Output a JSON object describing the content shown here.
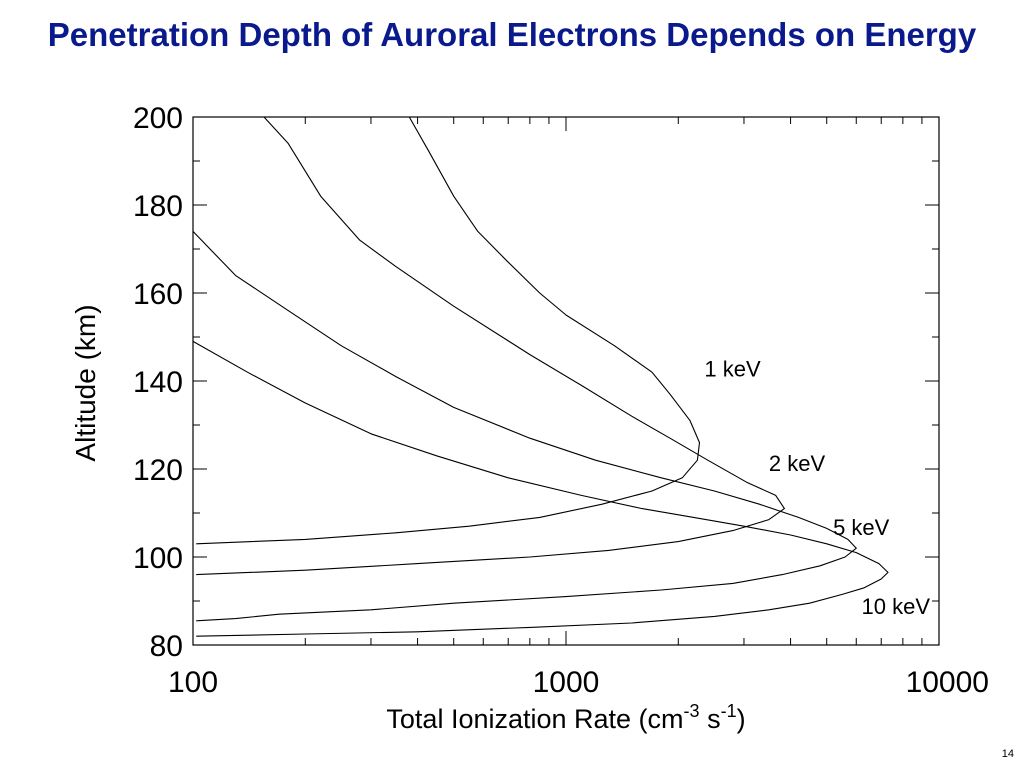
{
  "slide": {
    "title": "Penetration Depth of Auroral Electrons Depends on Energy",
    "title_color": "#0a1a8c",
    "page_number": "14"
  },
  "chart_data": {
    "type": "line",
    "title": "",
    "xlabel": "Total Ionization Rate (cm",
    "xlabel_sup1": "-3",
    "xlabel_mid": " s",
    "xlabel_sup2": "-1",
    "xlabel_end": ")",
    "ylabel": "Altitude (km)",
    "xscale": "log",
    "xlim": [
      100,
      10000
    ],
    "ylim": [
      80,
      200
    ],
    "xticks": [
      {
        "value": 100,
        "label": "100"
      },
      {
        "value": 1000,
        "label": "1000"
      },
      {
        "value": 10000,
        "label": "10000"
      }
    ],
    "yticks": [
      {
        "value": 80,
        "label": "80"
      },
      {
        "value": 100,
        "label": "100"
      },
      {
        "value": 120,
        "label": "120"
      },
      {
        "value": 140,
        "label": "140"
      },
      {
        "value": 160,
        "label": "160"
      },
      {
        "value": 180,
        "label": "180"
      },
      {
        "value": 200,
        "label": "200"
      }
    ],
    "grid": false,
    "legend": "none",
    "series": [
      {
        "name": "1 keV",
        "label_at": {
          "x": 2350,
          "y": 141
        },
        "points": [
          [
            102,
            103
          ],
          [
            200,
            104
          ],
          [
            350,
            105.5
          ],
          [
            550,
            107
          ],
          [
            850,
            109
          ],
          [
            1250,
            112
          ],
          [
            1700,
            115
          ],
          [
            2050,
            118
          ],
          [
            2250,
            122
          ],
          [
            2280,
            126
          ],
          [
            2150,
            131
          ],
          [
            1900,
            137
          ],
          [
            1700,
            142
          ],
          [
            1350,
            148
          ],
          [
            1000,
            155
          ],
          [
            850,
            160
          ],
          [
            700,
            167
          ],
          [
            580,
            174
          ],
          [
            500,
            182
          ],
          [
            430,
            192
          ],
          [
            380,
            200
          ]
        ]
      },
      {
        "name": "2 keV",
        "label_at": {
          "x": 3500,
          "y": 119.5
        },
        "points": [
          [
            102,
            96
          ],
          [
            200,
            97
          ],
          [
            400,
            98.5
          ],
          [
            800,
            100
          ],
          [
            1300,
            101.5
          ],
          [
            2000,
            103.5
          ],
          [
            2800,
            106
          ],
          [
            3500,
            108.5
          ],
          [
            3850,
            111
          ],
          [
            3650,
            114
          ],
          [
            3050,
            117
          ],
          [
            2400,
            122
          ],
          [
            1900,
            127
          ],
          [
            1500,
            132
          ],
          [
            1100,
            139
          ],
          [
            800,
            146
          ],
          [
            500,
            157
          ],
          [
            350,
            166
          ],
          [
            280,
            172
          ],
          [
            220,
            182
          ],
          [
            180,
            194
          ],
          [
            155,
            200
          ]
        ]
      },
      {
        "name": "5 keV",
        "label_at": {
          "x": 5200,
          "y": 105
        },
        "points": [
          [
            102,
            85.5
          ],
          [
            130,
            86
          ],
          [
            170,
            87
          ],
          [
            300,
            88
          ],
          [
            500,
            89.5
          ],
          [
            1000,
            91
          ],
          [
            1800,
            92.5
          ],
          [
            2800,
            94
          ],
          [
            3800,
            96
          ],
          [
            4800,
            98
          ],
          [
            5600,
            100
          ],
          [
            6000,
            102
          ],
          [
            5700,
            104
          ],
          [
            5000,
            106.5
          ],
          [
            4200,
            109
          ],
          [
            3300,
            112
          ],
          [
            2500,
            115
          ],
          [
            1800,
            118
          ],
          [
            1200,
            122
          ],
          [
            800,
            127
          ],
          [
            500,
            134
          ],
          [
            350,
            141
          ],
          [
            250,
            148
          ],
          [
            180,
            156
          ],
          [
            130,
            164
          ],
          [
            100,
            174
          ]
        ]
      },
      {
        "name": "10 keV",
        "label_at": {
          "x": 6200,
          "y": 87
        },
        "points": [
          [
            102,
            82
          ],
          [
            200,
            82.5
          ],
          [
            400,
            83
          ],
          [
            800,
            84
          ],
          [
            1500,
            85
          ],
          [
            2500,
            86.5
          ],
          [
            3500,
            88
          ],
          [
            4500,
            89.5
          ],
          [
            5500,
            91.5
          ],
          [
            6300,
            93
          ],
          [
            7000,
            95
          ],
          [
            7300,
            96.5
          ],
          [
            6900,
            98.5
          ],
          [
            6000,
            101
          ],
          [
            5000,
            103
          ],
          [
            4000,
            105
          ],
          [
            3000,
            107
          ],
          [
            2200,
            109
          ],
          [
            1600,
            111
          ],
          [
            1100,
            114
          ],
          [
            700,
            118
          ],
          [
            450,
            123
          ],
          [
            300,
            128
          ],
          [
            200,
            135
          ],
          [
            140,
            142
          ],
          [
            100,
            149
          ]
        ]
      }
    ],
    "line_color": "#000000"
  }
}
